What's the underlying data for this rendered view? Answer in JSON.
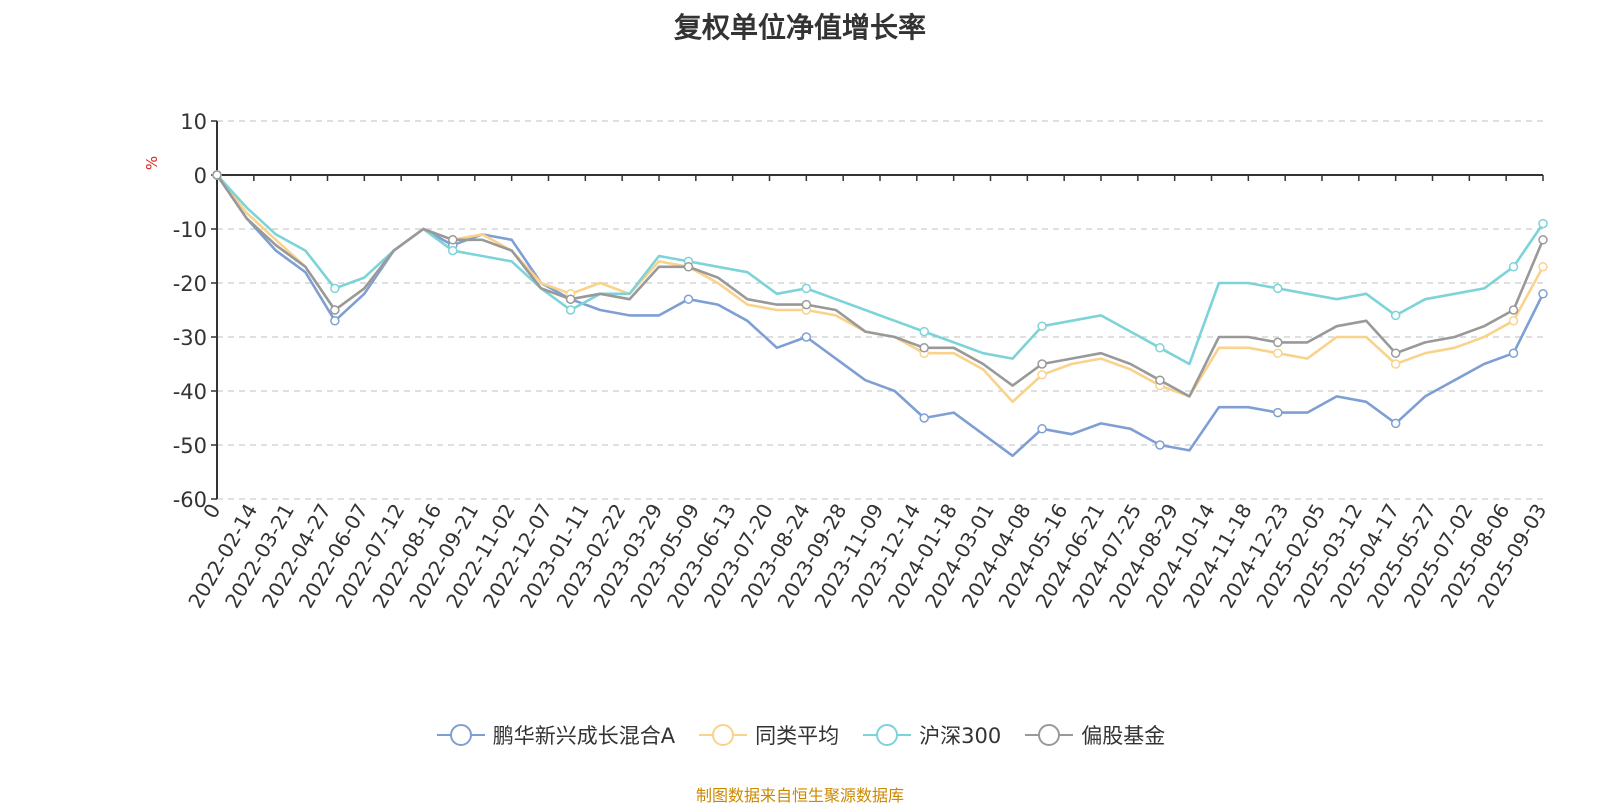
{
  "title": "复权单位净值增长率",
  "source": "制图数据来自恒生聚源数据库",
  "chart_data": {
    "type": "line",
    "title": "复权单位净值增长率",
    "ylabel": "%",
    "ylim": [
      -60,
      10
    ],
    "yticks": [
      10,
      0,
      -10,
      -20,
      -30,
      -40,
      -50,
      -60
    ],
    "grid": true,
    "legend_position": "bottom",
    "x_tick_labels": [
      "0",
      "2022-02-14",
      "2022-03-21",
      "2022-04-27",
      "2022-06-07",
      "2022-07-12",
      "2022-08-16",
      "2022-09-21",
      "2022-11-02",
      "2022-12-07",
      "2023-01-11",
      "2023-02-22",
      "2023-03-29",
      "2023-05-09",
      "2023-06-13",
      "2023-07-20",
      "2023-08-24",
      "2023-09-28",
      "2023-11-09",
      "2023-12-14",
      "2024-01-18",
      "2024-03-01",
      "2024-04-08",
      "2024-05-16",
      "2024-06-21",
      "2024-07-25",
      "2024-08-29",
      "2024-10-14",
      "2024-11-18",
      "2024-12-23",
      "2025-02-05",
      "2025-03-12",
      "2025-04-17",
      "2025-05-27",
      "2025-07-02",
      "2025-08-06",
      "2025-09-03"
    ],
    "series": [
      {
        "name": "鹏华新兴成长混合A",
        "color": "#7f9fd4",
        "values": [
          0,
          -8,
          -14,
          -18,
          -27,
          -22,
          -14,
          -10,
          -13,
          -11,
          -12,
          -20,
          -23,
          -25,
          -26,
          -26,
          -23,
          -24,
          -27,
          -32,
          -30,
          -34,
          -38,
          -40,
          -45,
          -44,
          -48,
          -52,
          -47,
          -48,
          -46,
          -47,
          -50,
          -51,
          -43,
          -43,
          -44,
          -44,
          -41,
          -42,
          -46,
          -41,
          -38,
          -35,
          -33,
          -22
        ]
      },
      {
        "name": "同类平均",
        "color": "#f9d38c",
        "values": [
          0,
          -7,
          -12,
          -17,
          -25,
          -21,
          -14,
          -10,
          -12,
          -11,
          -14,
          -20,
          -22,
          -20,
          -22,
          -16,
          -17,
          -20,
          -24,
          -25,
          -25,
          -26,
          -29,
          -30,
          -33,
          -33,
          -36,
          -42,
          -37,
          -35,
          -34,
          -36,
          -39,
          -41,
          -32,
          -32,
          -33,
          -34,
          -30,
          -30,
          -35,
          -33,
          -32,
          -30,
          -27,
          -17
        ]
      },
      {
        "name": "沪深300",
        "color": "#7dd3d8",
        "values": [
          0,
          -6,
          -11,
          -14,
          -21,
          -19,
          -14,
          -10,
          -14,
          -15,
          -16,
          -21,
          -25,
          -22,
          -22,
          -15,
          -16,
          -17,
          -18,
          -22,
          -21,
          -23,
          -25,
          -27,
          -29,
          -31,
          -33,
          -34,
          -28,
          -27,
          -26,
          -29,
          -32,
          -35,
          -20,
          -20,
          -21,
          -22,
          -23,
          -22,
          -26,
          -23,
          -22,
          -21,
          -17,
          -9
        ]
      },
      {
        "name": "偏股基金",
        "color": "#999999",
        "values": [
          0,
          -8,
          -13,
          -17,
          -25,
          -21,
          -14,
          -10,
          -12,
          -12,
          -14,
          -21,
          -23,
          -22,
          -23,
          -17,
          -17,
          -19,
          -23,
          -24,
          -24,
          -25,
          -29,
          -30,
          -32,
          -32,
          -35,
          -39,
          -35,
          -34,
          -33,
          -35,
          -38,
          -41,
          -30,
          -30,
          -31,
          -31,
          -28,
          -27,
          -33,
          -31,
          -30,
          -28,
          -25,
          -12
        ]
      }
    ]
  }
}
